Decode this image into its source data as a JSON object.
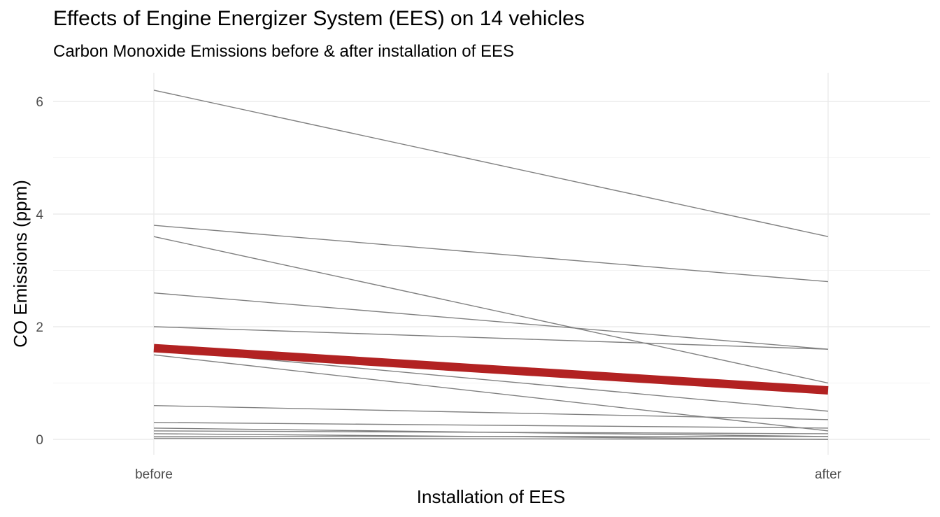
{
  "chart_data": {
    "type": "line",
    "title": "Effects of Engine Energizer System (EES) on 14 vehicles",
    "subtitle": "Carbon Monoxide Emissions before & after installation of EES",
    "xlabel": "Installation of EES",
    "ylabel": "CO Emissions (ppm)",
    "categories": [
      "before",
      "after"
    ],
    "ylim": [
      -0.25,
      6.5
    ],
    "yticks": [
      0,
      2,
      4,
      6
    ],
    "grid": true,
    "series_color": "#808080",
    "highlight_color": "#B22222",
    "series": [
      {
        "values": [
          6.2,
          3.6
        ]
      },
      {
        "values": [
          3.8,
          2.8
        ]
      },
      {
        "values": [
          3.6,
          1.0
        ]
      },
      {
        "values": [
          2.6,
          1.6
        ]
      },
      {
        "values": [
          2.0,
          1.6
        ]
      },
      {
        "values": [
          1.6,
          0.5
        ]
      },
      {
        "values": [
          1.5,
          0.15
        ]
      },
      {
        "values": [
          0.6,
          0.35
        ]
      },
      {
        "values": [
          0.3,
          0.2
        ]
      },
      {
        "values": [
          0.2,
          0.05
        ]
      },
      {
        "values": [
          0.15,
          0.1
        ]
      },
      {
        "values": [
          0.1,
          0.0
        ]
      },
      {
        "values": [
          0.05,
          0.05
        ]
      },
      {
        "values": [
          0.02,
          0.0
        ]
      }
    ],
    "mean": {
      "values": [
        1.62,
        0.87
      ]
    }
  }
}
